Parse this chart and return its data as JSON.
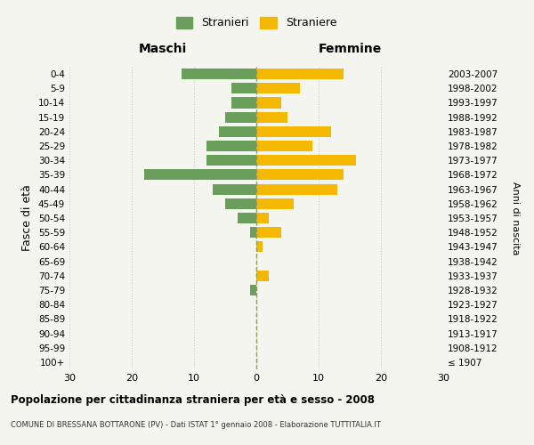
{
  "age_groups": [
    "100+",
    "95-99",
    "90-94",
    "85-89",
    "80-84",
    "75-79",
    "70-74",
    "65-69",
    "60-64",
    "55-59",
    "50-54",
    "45-49",
    "40-44",
    "35-39",
    "30-34",
    "25-29",
    "20-24",
    "15-19",
    "10-14",
    "5-9",
    "0-4"
  ],
  "birth_years": [
    "≤ 1907",
    "1908-1912",
    "1913-1917",
    "1918-1922",
    "1923-1927",
    "1928-1932",
    "1933-1937",
    "1938-1942",
    "1943-1947",
    "1948-1952",
    "1953-1957",
    "1958-1962",
    "1963-1967",
    "1968-1972",
    "1973-1977",
    "1978-1982",
    "1983-1987",
    "1988-1992",
    "1993-1997",
    "1998-2002",
    "2003-2007"
  ],
  "males": [
    0,
    0,
    0,
    0,
    0,
    1,
    0,
    0,
    0,
    1,
    3,
    5,
    7,
    18,
    8,
    8,
    6,
    5,
    4,
    4,
    12
  ],
  "females": [
    0,
    0,
    0,
    0,
    0,
    0,
    2,
    0,
    1,
    4,
    2,
    6,
    13,
    14,
    16,
    9,
    12,
    5,
    4,
    7,
    14
  ],
  "male_color": "#6a9e5b",
  "female_color": "#f5b800",
  "background_color": "#f5f5f0",
  "grid_color": "#cccccc",
  "title": "Popolazione per cittadinanza straniera per età e sesso - 2008",
  "subtitle": "COMUNE DI BRESSANA BOTTARONE (PV) - Dati ISTAT 1° gennaio 2008 - Elaborazione TUTTITALIA.IT",
  "ylabel_left": "Fasce di età",
  "ylabel_right": "Anni di nascita",
  "xlabel_left": "Maschi",
  "xlabel_right": "Femmine",
  "legend_males": "Stranieri",
  "legend_females": "Straniere",
  "xlim": 30,
  "bar_height": 0.75,
  "dashed_line_color": "#999966"
}
